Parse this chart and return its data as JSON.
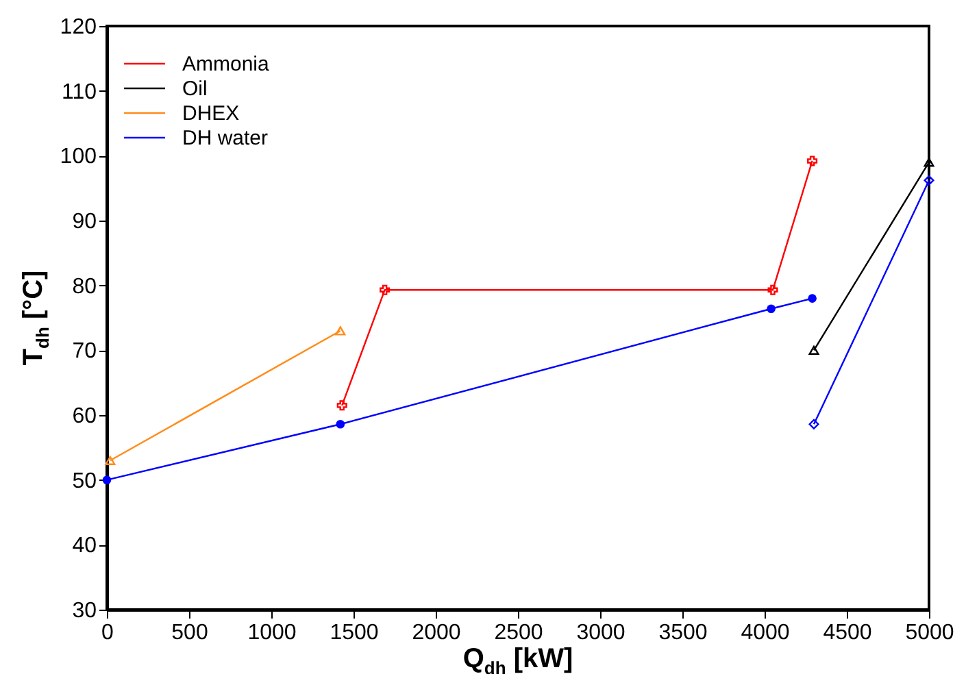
{
  "chart_data": {
    "type": "line",
    "xlabel": "Q$_{dh}$ [kW]",
    "ylabel": "T$_{dh}$ [°C]",
    "series": [
      {
        "name": "Ammonia",
        "color": "#ff0000",
        "marker": "cross",
        "x": [
          1430,
          1690,
          4050,
          4290
        ],
        "values": [
          61.5,
          79.3,
          79.3,
          99.2
        ]
      },
      {
        "name": "Oil",
        "color": "#000000",
        "marker": "triangle",
        "x": [
          4300,
          5000
        ],
        "values": [
          70,
          99
        ]
      },
      {
        "name": "DHEX",
        "color": "#ff8c1a",
        "marker": "triangle",
        "x": [
          20,
          1420
        ],
        "values": [
          53,
          73
        ]
      },
      {
        "name": "DH water",
        "color": "#0000ff",
        "marker": "circle",
        "x": [
          0,
          1420,
          4040,
          4290
        ],
        "values": [
          50,
          58.6,
          76.4,
          78
        ]
      },
      {
        "color": "#0000ff",
        "marker": "diamond",
        "x": [
          4300,
          5000
        ],
        "values": [
          58.6,
          96.2
        ]
      }
    ],
    "xlim": [
      0,
      5000
    ],
    "xticks": [
      0,
      500,
      1000,
      1500,
      2000,
      2500,
      3000,
      3500,
      4000,
      4500,
      5000
    ],
    "ylim": [
      30,
      120
    ],
    "yticks": [
      30,
      40,
      50,
      60,
      70,
      80,
      90,
      100,
      110,
      120
    ],
    "grid": false,
    "legend": "top left"
  }
}
